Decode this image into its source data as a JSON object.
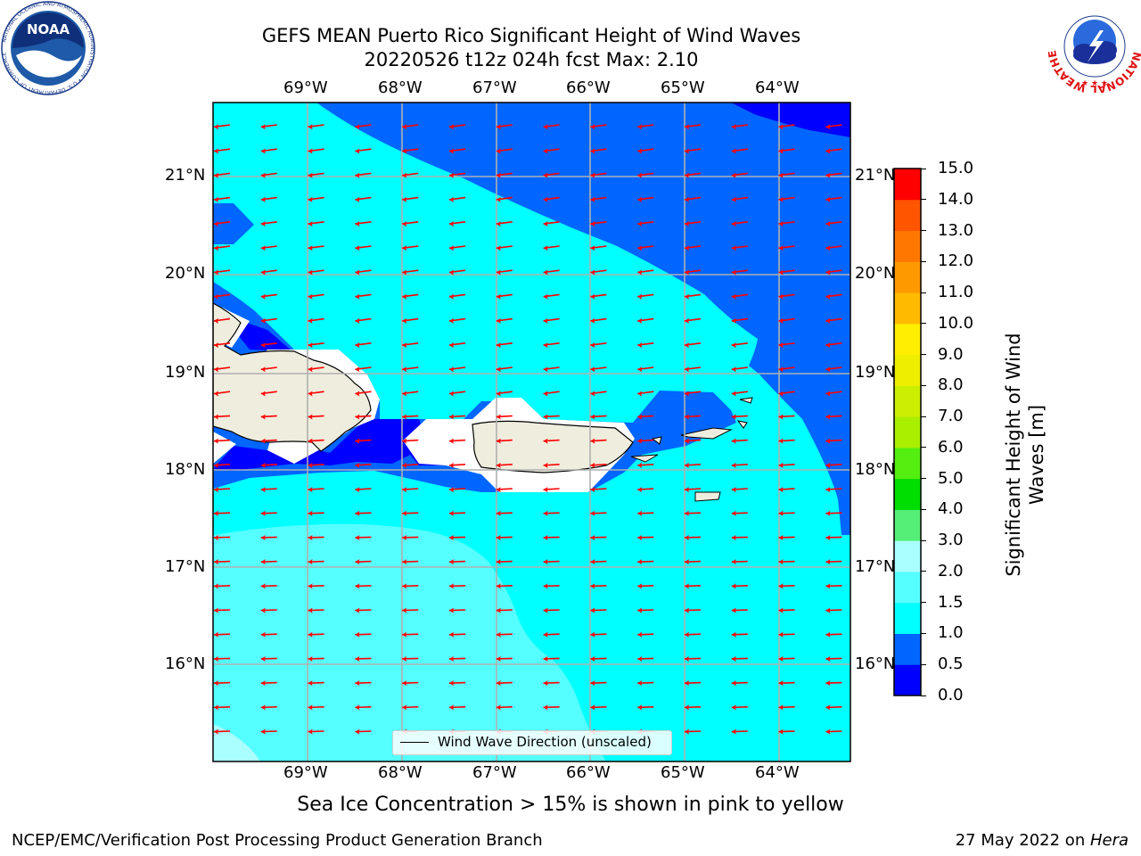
{
  "title": {
    "line1": "GEFS MEAN Puerto Rico Significant Height of Wind Waves",
    "line2": "20220526 t12z 024h fcst   Max: 2.10"
  },
  "map": {
    "lon_labels": [
      "69°W",
      "68°W",
      "67°W",
      "66°W",
      "65°W",
      "64°W"
    ],
    "lat_labels": [
      "21°N",
      "20°N",
      "19°N",
      "18°N",
      "17°N",
      "16°N"
    ],
    "legend_label": "Wind Wave Direction (unscaled)",
    "arrow_color": "#ff0000",
    "land_color": "#efedde"
  },
  "colorbar": {
    "label": "Significant Height of Wind Waves [m]",
    "label_line1": "Significant Height of Wind",
    "label_line2": "Waves [m]",
    "ticks": [
      "0.0",
      "0.5",
      "1.0",
      "1.5",
      "2.0",
      "3.0",
      "4.0",
      "5.0",
      "6.0",
      "7.0",
      "8.0",
      "9.0",
      "10.0",
      "11.0",
      "12.0",
      "13.0",
      "14.0",
      "15.0"
    ],
    "colors": [
      "#0000ff",
      "#0066ff",
      "#00ffff",
      "#55ffff",
      "#aaffff",
      "#55ee77",
      "#00dd00",
      "#55ee11",
      "#aaee00",
      "#ccee00",
      "#eeee00",
      "#ffee00",
      "#ffbb00",
      "#ff9900",
      "#ff7700",
      "#ff5500",
      "#ff0000"
    ]
  },
  "caption": "Sea Ice Concentration > 15% is shown in pink to yellow",
  "footer": {
    "left": "NCEP/EMC/Verification Post Processing Product Generation Branch",
    "right_date": "27 May 2022 on ",
    "right_machine": "Hera"
  },
  "logos": {
    "noaa": "NOAA",
    "noaa_ring": "NATIONAL OCEANIC AND ATMOSPHERIC ADMINISTRATION • U.S. DEPARTMENT OF COMMERCE",
    "nws_ring": "NATIONAL WEATHER SERVICE"
  }
}
